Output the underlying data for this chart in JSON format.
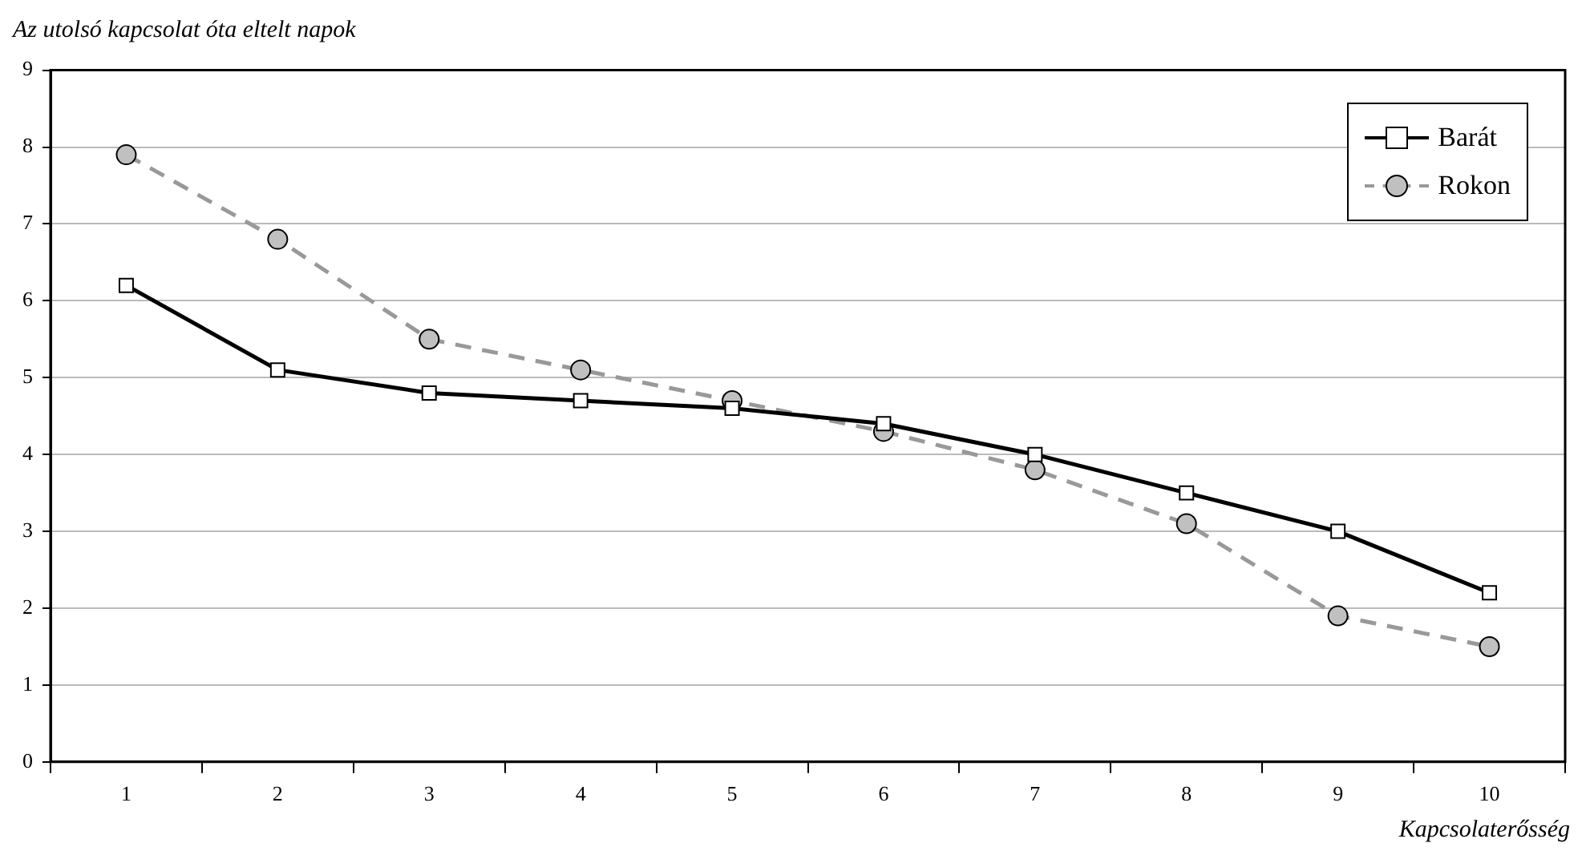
{
  "chart_data": {
    "type": "line",
    "ylabel": "Az utolsó kapcsolat óta eltelt napok",
    "xlabel": "Kapcsolaterősség",
    "categories": [
      "1",
      "2",
      "3",
      "4",
      "5",
      "6",
      "7",
      "8",
      "9",
      "10"
    ],
    "series": [
      {
        "name": "Barát",
        "color": "#000000",
        "marker": "square",
        "line_style": "solid",
        "values": [
          6.2,
          5.1,
          4.8,
          4.7,
          4.6,
          4.4,
          4.0,
          3.5,
          3.0,
          2.2
        ]
      },
      {
        "name": "Rokon",
        "color": "#999999",
        "marker": "circle",
        "line_style": "dashed",
        "values": [
          7.9,
          6.8,
          5.5,
          5.1,
          4.7,
          4.3,
          3.8,
          3.1,
          1.9,
          1.5
        ]
      }
    ],
    "ylim": [
      0,
      9
    ],
    "yticks": [
      0,
      1,
      2,
      3,
      4,
      5,
      6,
      7,
      8,
      9
    ],
    "grid": "y",
    "legend": "top right"
  }
}
